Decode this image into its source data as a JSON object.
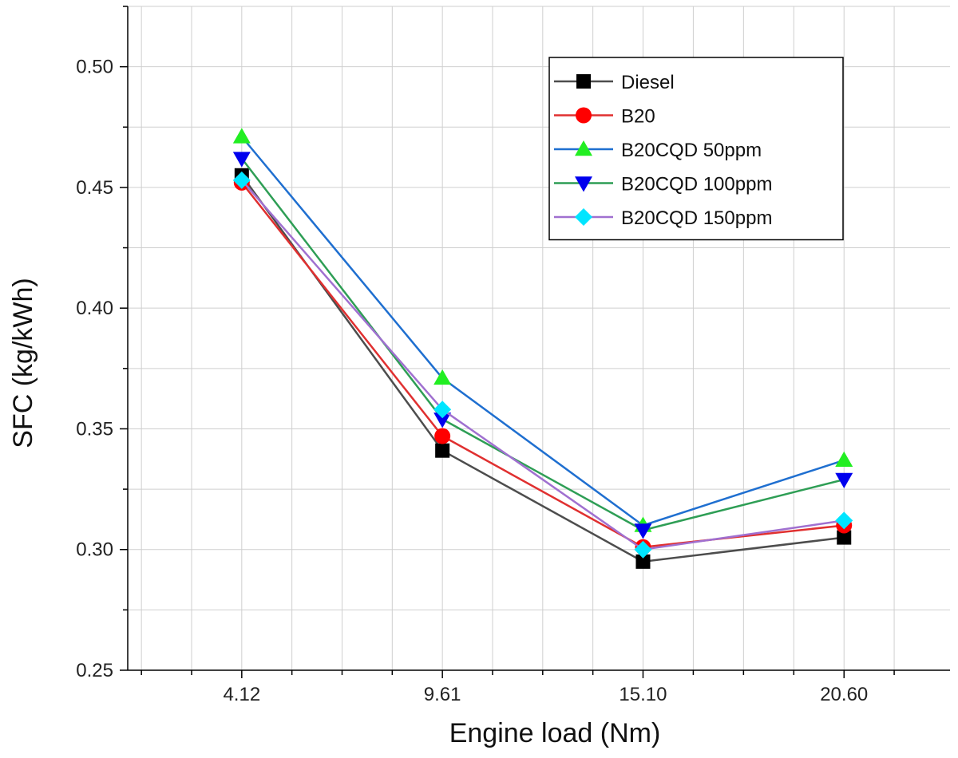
{
  "chart_data": {
    "type": "line",
    "title": "",
    "xlabel": "Engine load (Nm)",
    "ylabel": "SFC (kg/kWh)",
    "categories": [
      "4.12",
      "9.61",
      "15.10",
      "20.60"
    ],
    "x_numeric": [
      4.12,
      9.61,
      15.1,
      20.6
    ],
    "xlim": [
      1.0,
      23.5
    ],
    "ylim": [
      0.25,
      0.525
    ],
    "yticks": [
      "0.25",
      "0.30",
      "0.35",
      "0.40",
      "0.45",
      "0.50"
    ],
    "ytick_values": [
      0.25,
      0.3,
      0.35,
      0.4,
      0.45,
      0.5
    ],
    "grid": true,
    "legend_position": "top-right",
    "series": [
      {
        "name": "Diesel",
        "marker": "square",
        "color": "#4d4d4d",
        "marker_color": "#000000",
        "values": [
          0.455,
          0.341,
          0.295,
          0.305
        ]
      },
      {
        "name": "B20",
        "marker": "circle",
        "color": "#e03030",
        "marker_color": "#ff0000",
        "values": [
          0.452,
          0.347,
          0.301,
          0.31
        ]
      },
      {
        "name": "B20CQD 50ppm",
        "marker": "triangle-up",
        "color": "#1f6fd0",
        "marker_color": "#22ee22",
        "values": [
          0.471,
          0.371,
          0.31,
          0.337
        ]
      },
      {
        "name": "B20CQD 100ppm",
        "marker": "triangle-down",
        "color": "#2e9e55",
        "marker_color": "#0000ee",
        "values": [
          0.462,
          0.354,
          0.308,
          0.329
        ]
      },
      {
        "name": "B20CQD 150ppm",
        "marker": "diamond",
        "color": "#a070d0",
        "marker_color": "#00e5ff",
        "values": [
          0.453,
          0.358,
          0.3,
          0.312
        ]
      }
    ]
  }
}
